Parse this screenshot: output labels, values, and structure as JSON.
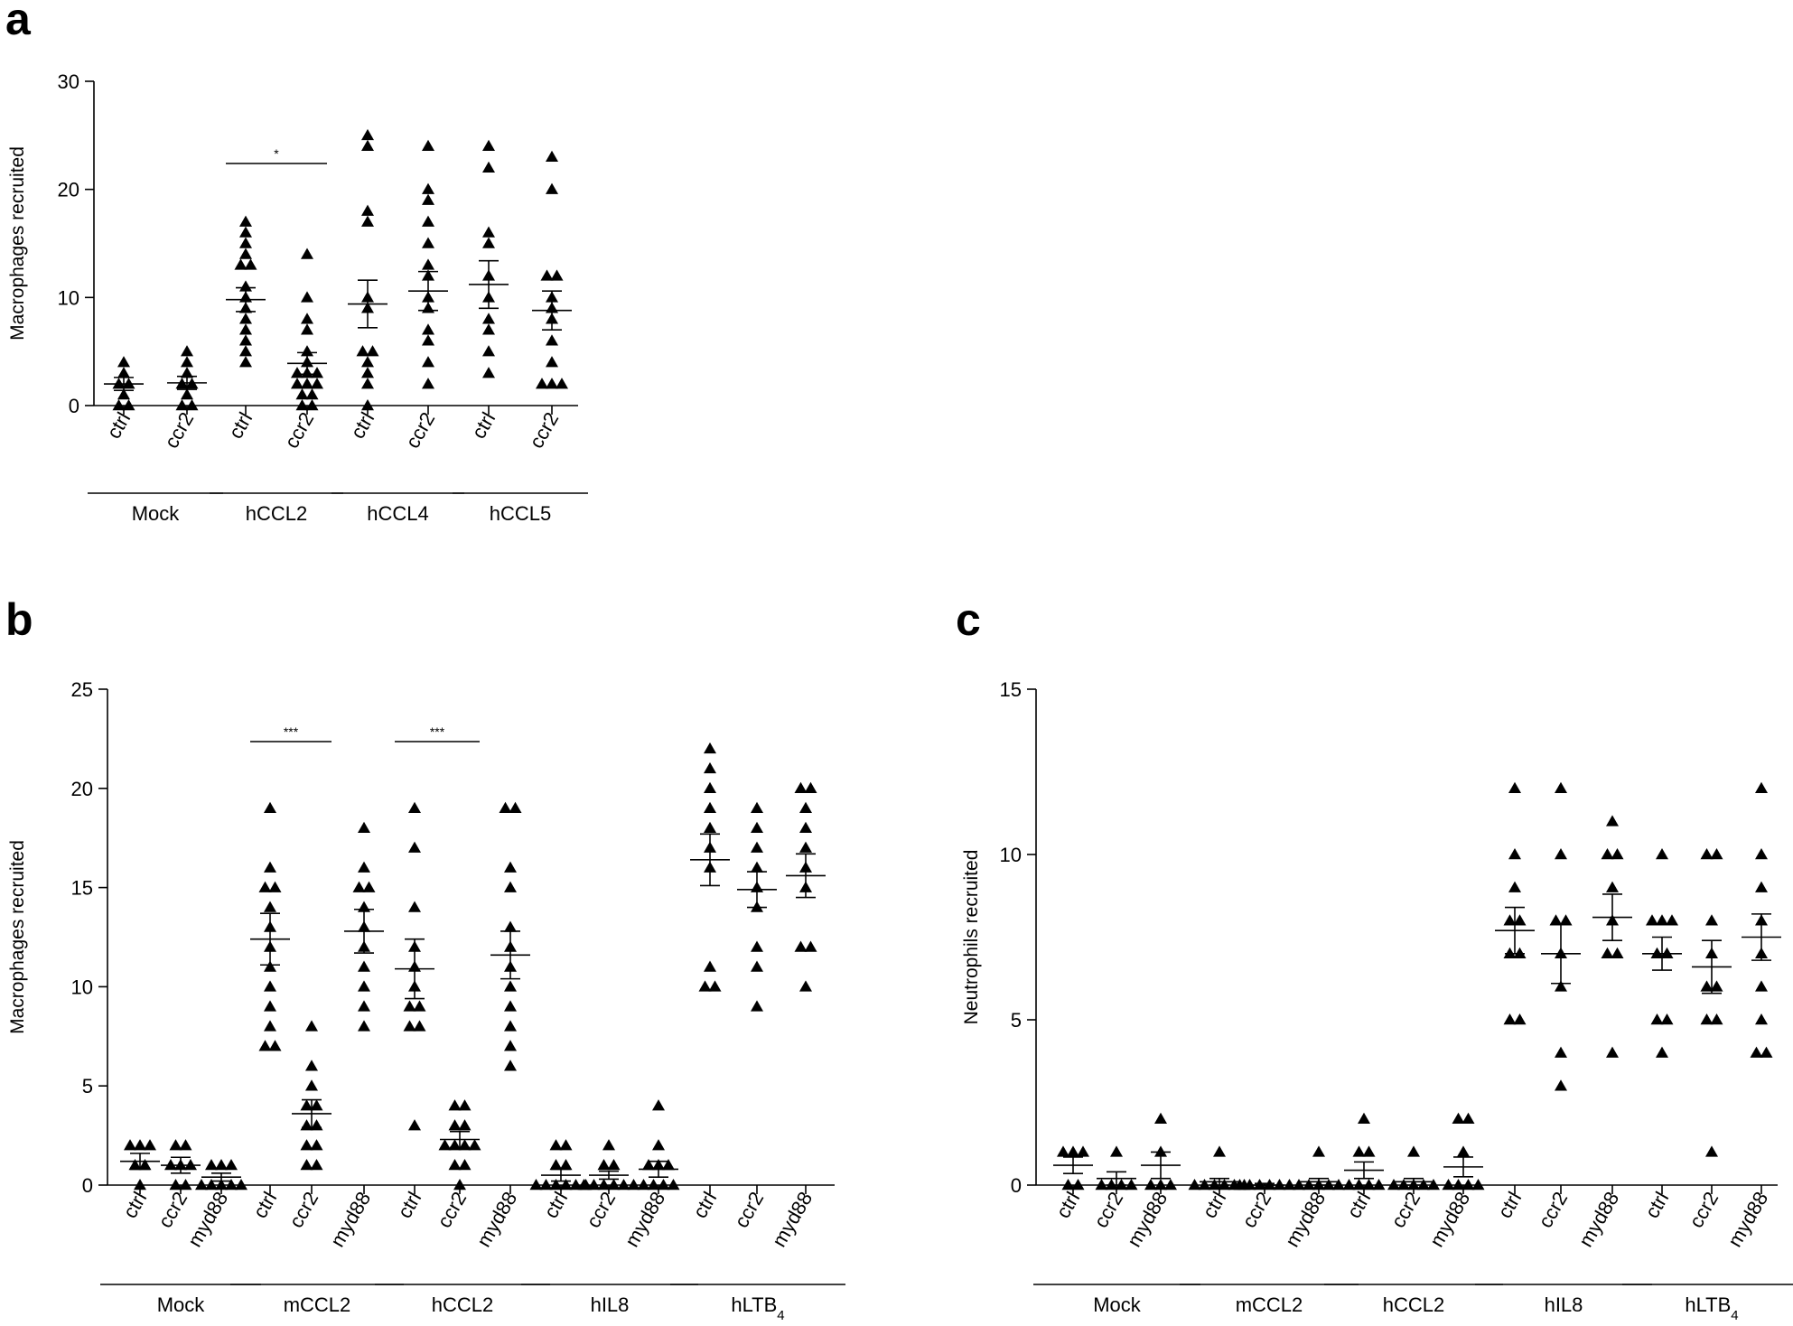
{
  "chart_data": [
    {
      "panel": "a",
      "type": "scatter",
      "ylabel": "Macrophages recruited",
      "ylim": [
        0,
        30
      ],
      "yticks": [
        0,
        10,
        20,
        30
      ],
      "categories": [
        "ctrl",
        "ccr2",
        "ctrl",
        "ccr2",
        "ctrl",
        "ccr2",
        "ctrl",
        "ccr2"
      ],
      "groups": [
        {
          "label": "Mock",
          "columns": [
            0,
            1
          ]
        },
        {
          "label": "hCCL2",
          "columns": [
            2,
            3
          ]
        },
        {
          "label": "hCCL4",
          "columns": [
            4,
            5
          ]
        },
        {
          "label": "hCCL5",
          "columns": [
            6,
            7
          ]
        }
      ],
      "series": [
        {
          "points": [
            4,
            3,
            2,
            2,
            1,
            0,
            0
          ],
          "mean": 2.0,
          "sem": 0.6
        },
        {
          "points": [
            5,
            4,
            3,
            2,
            2,
            1,
            0,
            0
          ],
          "mean": 2.1,
          "sem": 0.6
        },
        {
          "points": [
            17,
            16,
            15,
            14,
            13,
            13,
            11,
            10,
            9,
            8,
            7,
            6,
            5,
            4
          ],
          "mean": 9.8,
          "sem": 1.1
        },
        {
          "points": [
            14,
            10,
            8,
            7,
            5,
            4,
            3,
            3,
            3,
            2,
            2,
            2,
            1,
            1,
            0,
            0
          ],
          "mean": 3.9,
          "sem": 1.0
        },
        {
          "points": [
            25,
            24,
            18,
            17,
            10,
            9,
            5,
            5,
            4,
            3,
            2,
            0
          ],
          "mean": 9.4,
          "sem": 2.2
        },
        {
          "points": [
            24,
            20,
            19,
            17,
            15,
            13,
            12,
            10,
            9,
            7,
            6,
            4,
            2
          ],
          "mean": 10.6,
          "sem": 1.8
        },
        {
          "points": [
            24,
            22,
            16,
            15,
            12,
            10,
            8,
            7,
            5,
            3
          ],
          "mean": 11.2,
          "sem": 2.2
        },
        {
          "points": [
            23,
            20,
            12,
            12,
            10,
            9,
            8,
            6,
            4,
            2,
            2,
            2
          ],
          "mean": 8.8,
          "sem": 1.8
        }
      ],
      "significance": [
        {
          "from": 2,
          "to": 3,
          "label": "*"
        }
      ]
    },
    {
      "panel": "b",
      "type": "scatter",
      "ylabel": "Macrophages recruited",
      "ylim": [
        0,
        25
      ],
      "yticks": [
        0,
        5,
        10,
        15,
        20,
        25
      ],
      "categories": [
        "ctrl",
        "ccr2",
        "myd88",
        "ctrl",
        "ccr2",
        "myd88",
        "ctrl",
        "ccr2",
        "myd88",
        "ctrl",
        "ccr2",
        "myd88",
        "ctrl",
        "ccr2",
        "myd88"
      ],
      "groups": [
        {
          "label": "Mock",
          "columns": [
            0,
            1,
            2
          ]
        },
        {
          "label": "mCCL2",
          "columns": [
            3,
            4,
            5
          ]
        },
        {
          "label": "hCCL2",
          "columns": [
            6,
            7,
            8
          ]
        },
        {
          "label": "hIL8",
          "columns": [
            9,
            10,
            11
          ]
        },
        {
          "label": "hLTB",
          "sub": "4",
          "columns": [
            12,
            13,
            14
          ]
        }
      ],
      "series": [
        {
          "points": [
            2,
            2,
            2,
            1,
            1,
            0
          ],
          "mean": 1.2,
          "sem": 0.4
        },
        {
          "points": [
            2,
            2,
            1,
            1,
            1,
            0,
            0
          ],
          "mean": 1.0,
          "sem": 0.4
        },
        {
          "points": [
            1,
            1,
            1,
            0,
            0,
            0,
            0,
            0
          ],
          "mean": 0.4,
          "sem": 0.2
        },
        {
          "points": [
            19,
            16,
            15,
            15,
            14,
            13,
            12,
            11,
            10,
            9,
            8,
            7,
            7
          ],
          "mean": 12.4,
          "sem": 1.3
        },
        {
          "points": [
            8,
            6,
            5,
            4,
            4,
            3,
            3,
            2,
            2,
            1,
            1
          ],
          "mean": 3.6,
          "sem": 0.7
        },
        {
          "points": [
            18,
            16,
            15,
            15,
            14,
            13,
            12,
            11,
            10,
            9,
            8
          ],
          "mean": 12.8,
          "sem": 1.1
        },
        {
          "points": [
            19,
            17,
            14,
            12,
            11,
            10,
            9,
            9,
            8,
            8,
            3
          ],
          "mean": 10.9,
          "sem": 1.5
        },
        {
          "points": [
            4,
            4,
            3,
            3,
            2,
            2,
            2,
            2,
            1,
            1,
            0
          ],
          "mean": 2.3,
          "sem": 0.4
        },
        {
          "points": [
            19,
            19,
            16,
            15,
            13,
            12,
            11,
            10,
            9,
            8,
            7,
            6
          ],
          "mean": 11.6,
          "sem": 1.2
        },
        {
          "points": [
            2,
            2,
            1,
            1,
            0,
            0,
            0,
            0,
            0,
            0
          ],
          "mean": 0.5,
          "sem": 0.3
        },
        {
          "points": [
            2,
            1,
            1,
            0,
            0,
            0,
            0,
            0,
            0
          ],
          "mean": 0.5,
          "sem": 0.2
        },
        {
          "points": [
            4,
            2,
            1,
            1,
            1,
            0,
            0,
            0,
            0
          ],
          "mean": 0.8,
          "sem": 0.4
        },
        {
          "points": [
            22,
            21,
            20,
            19,
            18,
            17,
            16,
            11,
            10,
            10
          ],
          "mean": 16.4,
          "sem": 1.3
        },
        {
          "points": [
            19,
            18,
            17,
            16,
            15,
            14,
            12,
            11,
            9
          ],
          "mean": 14.9,
          "sem": 0.9
        },
        {
          "points": [
            20,
            20,
            19,
            18,
            17,
            16,
            15,
            12,
            12,
            10
          ],
          "mean": 15.6,
          "sem": 1.1
        }
      ],
      "significance": [
        {
          "from": 3,
          "to": 4,
          "label": "***"
        },
        {
          "from": 6,
          "to": 7,
          "label": "***"
        }
      ]
    },
    {
      "panel": "c",
      "type": "scatter",
      "ylabel": "Neutrophils recruited",
      "ylim": [
        0,
        15
      ],
      "yticks": [
        0,
        5,
        10,
        15
      ],
      "categories": [
        "ctrl",
        "ccr2",
        "myd88",
        "ctrl",
        "ccr2",
        "myd88",
        "ctrl",
        "ccr2",
        "myd88",
        "ctrl",
        "ccr2",
        "myd88",
        "ctrl",
        "ccr2",
        "myd88"
      ],
      "groups": [
        {
          "label": "Mock",
          "columns": [
            0,
            1,
            2
          ]
        },
        {
          "label": "mCCL2",
          "columns": [
            3,
            4,
            5
          ]
        },
        {
          "label": "hCCL2",
          "columns": [
            6,
            7,
            8
          ]
        },
        {
          "label": "hIL8",
          "columns": [
            9,
            10,
            11
          ]
        },
        {
          "label": "hLTB",
          "sub": "4",
          "columns": [
            12,
            13,
            14
          ]
        }
      ],
      "series": [
        {
          "points": [
            1,
            1,
            1,
            0,
            0
          ],
          "mean": 0.6,
          "sem": 0.25
        },
        {
          "points": [
            1,
            0,
            0,
            0,
            0
          ],
          "mean": 0.2,
          "sem": 0.2
        },
        {
          "points": [
            2,
            1,
            0,
            0,
            0
          ],
          "mean": 0.6,
          "sem": 0.4
        },
        {
          "points": [
            1,
            0,
            0,
            0,
            0,
            0,
            0
          ],
          "mean": 0.1,
          "sem": 0.1
        },
        {
          "points": [
            0,
            0,
            0,
            0,
            0,
            0
          ],
          "mean": 0.0,
          "sem": 0.05
        },
        {
          "points": [
            1,
            0,
            0,
            0,
            0,
            0
          ],
          "mean": 0.1,
          "sem": 0.1
        },
        {
          "points": [
            2,
            1,
            1,
            0,
            0,
            0,
            0
          ],
          "mean": 0.45,
          "sem": 0.25
        },
        {
          "points": [
            1,
            0,
            0,
            0,
            0,
            0
          ],
          "mean": 0.1,
          "sem": 0.1
        },
        {
          "points": [
            2,
            2,
            1,
            0,
            0,
            0,
            0
          ],
          "mean": 0.55,
          "sem": 0.3
        },
        {
          "points": [
            12,
            10,
            9,
            8,
            8,
            7,
            7,
            5,
            5
          ],
          "mean": 7.7,
          "sem": 0.7
        },
        {
          "points": [
            12,
            10,
            8,
            8,
            7,
            6,
            4,
            3
          ],
          "mean": 7.0,
          "sem": 0.9
        },
        {
          "points": [
            11,
            10,
            10,
            9,
            8,
            7,
            7,
            4
          ],
          "mean": 8.1,
          "sem": 0.7
        },
        {
          "points": [
            10,
            8,
            8,
            8,
            7,
            7,
            5,
            5,
            4
          ],
          "mean": 7.0,
          "sem": 0.5
        },
        {
          "points": [
            10,
            10,
            8,
            7,
            6,
            6,
            5,
            5,
            1
          ],
          "mean": 6.6,
          "sem": 0.8
        },
        {
          "points": [
            12,
            10,
            9,
            8,
            7,
            6,
            5,
            4,
            4
          ],
          "mean": 7.5,
          "sem": 0.7
        }
      ],
      "significance": []
    }
  ]
}
